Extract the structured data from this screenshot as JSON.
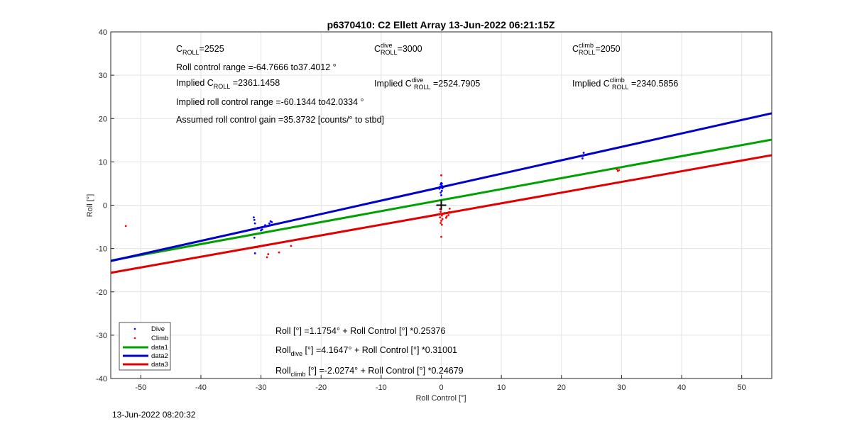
{
  "chart_data": {
    "type": "scatter",
    "title": "p6370410: C2 Ellett Array 13-Jun-2022 06:21:15Z",
    "xlabel": "Roll Control [°]",
    "ylabel": "Roll [°]",
    "xlim": [
      -55,
      55
    ],
    "ylim": [
      -40,
      40
    ],
    "xticks": [
      -50,
      -40,
      -30,
      -20,
      -10,
      0,
      10,
      20,
      30,
      40,
      50
    ],
    "yticks": [
      -40,
      -30,
      -20,
      -10,
      0,
      10,
      20,
      30,
      40
    ],
    "grid": true,
    "legend_position": "bottom-left",
    "series": [
      {
        "name": "Dive",
        "kind": "points",
        "color": "#0000ff",
        "points": [
          [
            -31.2,
            -2.8
          ],
          [
            -31.1,
            -3.4
          ],
          [
            -31.0,
            -4.2
          ],
          [
            -31.1,
            -7.5
          ],
          [
            -31.0,
            -11.1
          ],
          [
            -30.5,
            -5.2
          ],
          [
            -30.0,
            -5.8
          ],
          [
            -29.8,
            -5.6
          ],
          [
            -29.5,
            -5.0
          ],
          [
            -29.3,
            -4.6
          ],
          [
            -28.6,
            -4.2
          ],
          [
            -28.4,
            -3.7
          ],
          [
            -28.2,
            -3.9
          ],
          [
            -0.3,
            3.8
          ],
          [
            -0.2,
            4.3
          ],
          [
            -0.1,
            4.8
          ],
          [
            0.0,
            5.1
          ],
          [
            0.1,
            4.5
          ],
          [
            0.2,
            3.9
          ],
          [
            0.1,
            3.3
          ],
          [
            -0.1,
            2.9
          ],
          [
            0.0,
            2.3
          ],
          [
            0.1,
            5.0
          ],
          [
            23.5,
            10.8
          ],
          [
            23.6,
            11.4
          ],
          [
            23.7,
            12.1
          ]
        ]
      },
      {
        "name": "Climb",
        "kind": "points",
        "color": "#ff0000",
        "points": [
          [
            -52.5,
            -4.8
          ],
          [
            -30.6,
            -9.7
          ],
          [
            -29.0,
            -12.0
          ],
          [
            -28.8,
            -11.3
          ],
          [
            -27.0,
            -10.9
          ],
          [
            -25.0,
            -9.4
          ],
          [
            0.0,
            6.9
          ],
          [
            -0.2,
            -0.9
          ],
          [
            -0.1,
            -1.5
          ],
          [
            0.0,
            -2.0
          ],
          [
            0.1,
            -2.4
          ],
          [
            -0.2,
            -2.8
          ],
          [
            0.2,
            -3.2
          ],
          [
            0.0,
            -3.6
          ],
          [
            -0.1,
            -4.1
          ],
          [
            0.1,
            -4.5
          ],
          [
            0.0,
            -7.3
          ],
          [
            0.5,
            -1.8
          ],
          [
            0.9,
            -2.6
          ],
          [
            1.2,
            -2.3
          ],
          [
            1.4,
            -0.8
          ],
          [
            1.3,
            -1.6
          ],
          [
            0.8,
            -2.9
          ],
          [
            29.2,
            8.3
          ],
          [
            29.4,
            7.9
          ],
          [
            29.6,
            8.1
          ]
        ]
      },
      {
        "name": "data1",
        "kind": "line",
        "color": "#00a000",
        "intercept": 1.1754,
        "slope": 0.25376
      },
      {
        "name": "data2",
        "kind": "line",
        "color": "#0000c8",
        "intercept": 4.1647,
        "slope": 0.31001
      },
      {
        "name": "data3",
        "kind": "line",
        "color": "#e00000",
        "intercept": -2.0274,
        "slope": 0.24679
      }
    ],
    "marker": {
      "x": 0,
      "y": 0,
      "symbol": "+"
    },
    "annotations": {
      "c_roll": {
        "base": "C",
        "sub": "ROLL",
        "value": "=2525"
      },
      "c_roll_dive": {
        "base": "C",
        "sup": "dive",
        "sub": "ROLL",
        "value": "=3000"
      },
      "c_roll_climb": {
        "base": "C",
        "sup": "climb",
        "sub": "ROLL",
        "value": "=2050"
      },
      "roll_control_range": "Roll control range =-64.7666 to37.4012 °",
      "implied_c_roll": {
        "prefix": "Implied C",
        "sub": "ROLL",
        "value": " =2361.1458"
      },
      "implied_c_roll_dive": {
        "prefix": "Implied C",
        "sup": "dive",
        "sub": "ROLL",
        "value": " =2524.7905"
      },
      "implied_c_roll_climb": {
        "prefix": "Implied C",
        "sup": "climb",
        "sub": "ROLL",
        "value": " =2340.5856"
      },
      "implied_roll_range": "Implied roll control range =-60.1344 to42.0334 °",
      "assumed_gain": "Assumed roll control gain =35.3732 [counts/° to stbd]",
      "eq_all": "Roll [°] =1.1754° + Roll Control [°] *0.25376",
      "eq_dive": {
        "prefix": "Roll",
        "sub": "dive",
        "rest": " [°] =4.1647° + Roll Control [°] *0.31001"
      },
      "eq_climb": {
        "prefix": "Roll",
        "sub": "climb",
        "rest": " [°] =-2.0274° + Roll Control [°] *0.24679"
      }
    }
  },
  "footer": {
    "timestamp": "13-Jun-2022 08:20:32"
  }
}
